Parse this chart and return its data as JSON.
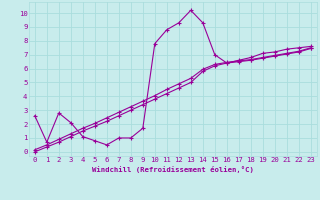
{
  "xlabel": "Windchill (Refroidissement éolien,°C)",
  "bg_color": "#c8ecec",
  "line_color": "#990099",
  "grid_color": "#aadddd",
  "x_ticks": [
    0,
    1,
    2,
    3,
    4,
    5,
    6,
    7,
    8,
    9,
    10,
    11,
    12,
    13,
    14,
    15,
    16,
    17,
    18,
    19,
    20,
    21,
    22,
    23
  ],
  "y_ticks": [
    0,
    1,
    2,
    3,
    4,
    5,
    6,
    7,
    8,
    9,
    10
  ],
  "xlim": [
    -0.5,
    23.5
  ],
  "ylim": [
    -0.3,
    10.8
  ],
  "series1_x": [
    0,
    1,
    2,
    3,
    4,
    5,
    6,
    7,
    8,
    9,
    10,
    11,
    12,
    13,
    14,
    15,
    16,
    17,
    18,
    19,
    20,
    21,
    22,
    23
  ],
  "series1_y": [
    2.6,
    0.7,
    2.8,
    2.1,
    1.1,
    0.8,
    0.5,
    1.0,
    1.0,
    1.7,
    7.8,
    8.8,
    9.3,
    10.2,
    9.3,
    7.0,
    6.4,
    6.6,
    6.8,
    7.1,
    7.2,
    7.4,
    7.5,
    7.6
  ],
  "series2_x": [
    0,
    1,
    2,
    3,
    4,
    5,
    6,
    7,
    8,
    9,
    10,
    11,
    12,
    13,
    14,
    15,
    16,
    17,
    18,
    19,
    20,
    21,
    22,
    23
  ],
  "series2_y": [
    0.0,
    0.35,
    0.7,
    1.1,
    1.5,
    1.85,
    2.2,
    2.6,
    3.0,
    3.4,
    3.8,
    4.2,
    4.6,
    5.0,
    5.8,
    6.2,
    6.4,
    6.5,
    6.6,
    6.75,
    6.9,
    7.05,
    7.2,
    7.45
  ],
  "series3_x": [
    0,
    1,
    2,
    3,
    4,
    5,
    6,
    7,
    8,
    9,
    10,
    11,
    12,
    13,
    14,
    15,
    16,
    17,
    18,
    19,
    20,
    21,
    22,
    23
  ],
  "series3_y": [
    0.15,
    0.5,
    0.9,
    1.3,
    1.7,
    2.05,
    2.45,
    2.85,
    3.25,
    3.65,
    4.05,
    4.5,
    4.9,
    5.3,
    5.95,
    6.3,
    6.45,
    6.55,
    6.65,
    6.8,
    6.95,
    7.1,
    7.25,
    7.5
  ]
}
